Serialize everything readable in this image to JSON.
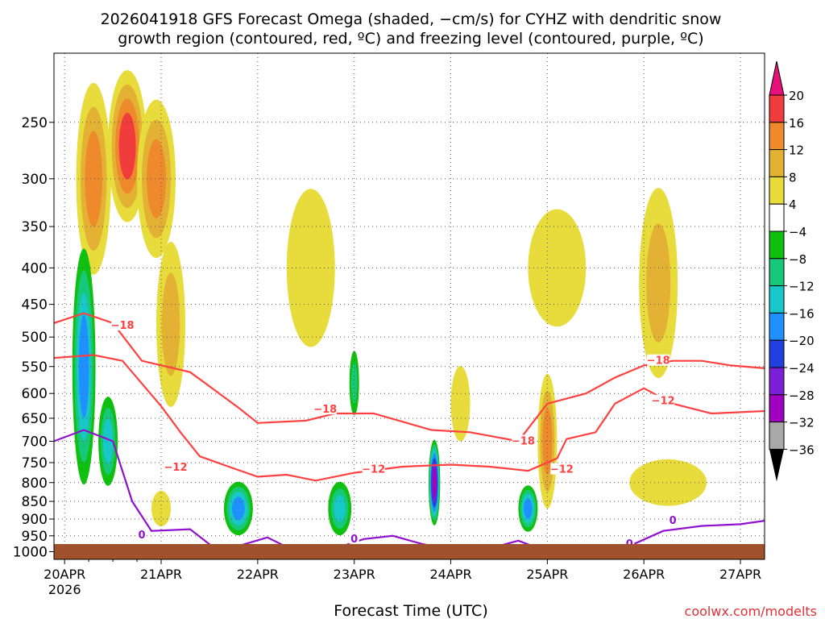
{
  "title_line1": "2026041918 GFS Forecast Omega (shaded, −cm/s) for CYHZ with dendritic snow",
  "title_line2": "growth region (contoured, red, ºC) and freezing level (contoured, purple, ºC)",
  "xlabel": "Forecast Time (UTC)",
  "credit": "coolwx.com/modelts",
  "chart_data": {
    "type": "heatmap",
    "title": "2026041918 GFS Forecast Omega (shaded, −cm/s) for CYHZ with dendritic snow growth region (contoured, red, ºC) and freezing level (contoured, purple, ºC)",
    "xlabel": "Forecast Time (UTC)",
    "ylabel": "",
    "x_ticks": [
      "20APR",
      "21APR",
      "22APR",
      "23APR",
      "24APR",
      "25APR",
      "26APR",
      "27APR"
    ],
    "x_tick_sublabel": "2026",
    "xlim_days": [
      19.89,
      27.25
    ],
    "y_ticks": [
      250,
      300,
      350,
      400,
      450,
      500,
      550,
      600,
      650,
      700,
      750,
      800,
      850,
      900,
      950,
      1000
    ],
    "ylim_hpa": [
      200,
      1025
    ],
    "y_scale": "log-pressure",
    "grid": true,
    "colorbar": {
      "labels": [
        "20",
        "16",
        "12",
        "8",
        "4",
        "−4",
        "−8",
        "−12",
        "−16",
        "−20",
        "−24",
        "−28",
        "−32",
        "−36"
      ],
      "bins": [
        {
          "range": "16 to 20",
          "color": "#f03c3c"
        },
        {
          "range": "12 to 16",
          "color": "#ee8a2c"
        },
        {
          "range": "8 to 12",
          "color": "#e3b234"
        },
        {
          "range": "4 to 8",
          "color": "#e8dc3c"
        },
        {
          "range": "-4 to 4",
          "color": "#ffffff"
        },
        {
          "range": "-8 to -4",
          "color": "#10c010"
        },
        {
          "range": "-12 to -8",
          "color": "#18c87a"
        },
        {
          "range": "-16 to -12",
          "color": "#18c8c8"
        },
        {
          "range": "-20 to -16",
          "color": "#1e90ff"
        },
        {
          "range": "-24 to -20",
          "color": "#2040e0"
        },
        {
          "range": "-28 to -24",
          "color": "#7a20d8"
        },
        {
          "range": "-32 to -28",
          "color": "#a000c0"
        },
        {
          "range": "-36 to -32",
          "color": "#a8a8a8"
        }
      ],
      "top_arrow_color": "#e8107a",
      "bottom_arrow_color": "#000000"
    },
    "omega_blobs": [
      {
        "t": 20.3,
        "p": 300,
        "dt": 0.18,
        "dp": 180,
        "value": 12
      },
      {
        "t": 20.65,
        "p": 270,
        "dt": 0.2,
        "dp": 130,
        "value": 16
      },
      {
        "t": 20.95,
        "p": 300,
        "dt": 0.2,
        "dp": 150,
        "value": 12
      },
      {
        "t": 21.1,
        "p": 480,
        "dt": 0.15,
        "dp": 250,
        "value": 8
      },
      {
        "t": 20.2,
        "p": 550,
        "dt": 0.12,
        "dp": 400,
        "value": -16
      },
      {
        "t": 20.45,
        "p": 700,
        "dt": 0.1,
        "dp": 200,
        "value": -12
      },
      {
        "t": 21.0,
        "p": 870,
        "dt": 0.1,
        "dp": 100,
        "value": 4
      },
      {
        "t": 21.8,
        "p": 870,
        "dt": 0.15,
        "dp": 150,
        "value": -16
      },
      {
        "t": 22.55,
        "p": 400,
        "dt": 0.25,
        "dp": 200,
        "value": 4
      },
      {
        "t": 22.85,
        "p": 870,
        "dt": 0.12,
        "dp": 150,
        "value": -12
      },
      {
        "t": 23.0,
        "p": 580,
        "dt": 0.05,
        "dp": 120,
        "value": -8
      },
      {
        "t": 23.83,
        "p": 800,
        "dt": 0.06,
        "dp": 220,
        "value": -28
      },
      {
        "t": 24.1,
        "p": 620,
        "dt": 0.1,
        "dp": 150,
        "value": 4
      },
      {
        "t": 24.8,
        "p": 870,
        "dt": 0.1,
        "dp": 130,
        "value": -16
      },
      {
        "t": 25.0,
        "p": 700,
        "dt": 0.1,
        "dp": 300,
        "value": 12
      },
      {
        "t": 25.1,
        "p": 400,
        "dt": 0.3,
        "dp": 150,
        "value": 4
      },
      {
        "t": 26.15,
        "p": 420,
        "dt": 0.2,
        "dp": 250,
        "value": 8
      },
      {
        "t": 26.25,
        "p": 800,
        "dt": 0.4,
        "dp": 120,
        "value": 4
      }
    ],
    "contours": [
      {
        "name": "-18",
        "color": "#ff4040",
        "label": "−18",
        "points": [
          [
            19.89,
            478
          ],
          [
            20.2,
            463
          ],
          [
            20.5,
            478
          ],
          [
            20.8,
            540
          ],
          [
            21.3,
            560
          ],
          [
            21.8,
            628
          ],
          [
            22.0,
            660
          ],
          [
            22.5,
            655
          ],
          [
            22.8,
            640
          ],
          [
            23.2,
            640
          ],
          [
            23.8,
            675
          ],
          [
            24.2,
            680
          ],
          [
            24.7,
            700
          ],
          [
            25.0,
            620
          ],
          [
            25.4,
            600
          ],
          [
            25.7,
            570
          ],
          [
            26.0,
            548
          ],
          [
            26.3,
            540
          ],
          [
            26.6,
            540
          ],
          [
            26.9,
            548
          ],
          [
            27.25,
            553
          ]
        ],
        "labels": [
          [
            20.6,
            482
          ],
          [
            22.7,
            632
          ],
          [
            24.75,
            700
          ],
          [
            26.15,
            540
          ]
        ]
      },
      {
        "name": "-12",
        "color": "#ff4040",
        "label": "−12",
        "points": [
          [
            19.89,
            535
          ],
          [
            20.3,
            530
          ],
          [
            20.6,
            540
          ],
          [
            21.0,
            625
          ],
          [
            21.2,
            680
          ],
          [
            21.4,
            735
          ],
          [
            21.7,
            760
          ],
          [
            22.0,
            785
          ],
          [
            22.3,
            780
          ],
          [
            22.6,
            795
          ],
          [
            23.0,
            775
          ],
          [
            23.5,
            760
          ],
          [
            24.0,
            755
          ],
          [
            24.4,
            760
          ],
          [
            24.8,
            770
          ],
          [
            25.1,
            740
          ],
          [
            25.2,
            695
          ],
          [
            25.5,
            680
          ],
          [
            25.7,
            620
          ],
          [
            26.0,
            590
          ],
          [
            26.3,
            620
          ],
          [
            26.7,
            640
          ],
          [
            27.25,
            635
          ]
        ],
        "labels": [
          [
            21.15,
            762
          ],
          [
            23.2,
            767
          ],
          [
            25.15,
            767
          ],
          [
            26.2,
            615
          ]
        ]
      },
      {
        "name": "0",
        "color": "#9010d0",
        "label": "0",
        "points": [
          [
            19.89,
            700
          ],
          [
            20.2,
            675
          ],
          [
            20.5,
            700
          ],
          [
            20.7,
            850
          ],
          [
            20.9,
            935
          ],
          [
            21.3,
            930
          ],
          [
            21.6,
            1000
          ],
          [
            22.1,
            955
          ],
          [
            22.4,
            1000
          ],
          [
            22.8,
            990
          ],
          [
            23.1,
            960
          ],
          [
            23.4,
            950
          ],
          [
            23.7,
            975
          ],
          [
            24.1,
            1000
          ],
          [
            24.4,
            990
          ],
          [
            24.7,
            965
          ],
          [
            25.0,
            1000
          ],
          [
            25.3,
            1000
          ],
          [
            25.6,
            990
          ],
          [
            25.9,
            975
          ],
          [
            26.2,
            935
          ],
          [
            26.6,
            920
          ],
          [
            27.0,
            915
          ],
          [
            27.25,
            905
          ]
        ],
        "labels": [
          [
            20.8,
            948
          ],
          [
            23.0,
            960
          ],
          [
            25.85,
            975
          ],
          [
            26.3,
            905
          ]
        ]
      }
    ],
    "terrain_color": "#a0522d"
  }
}
